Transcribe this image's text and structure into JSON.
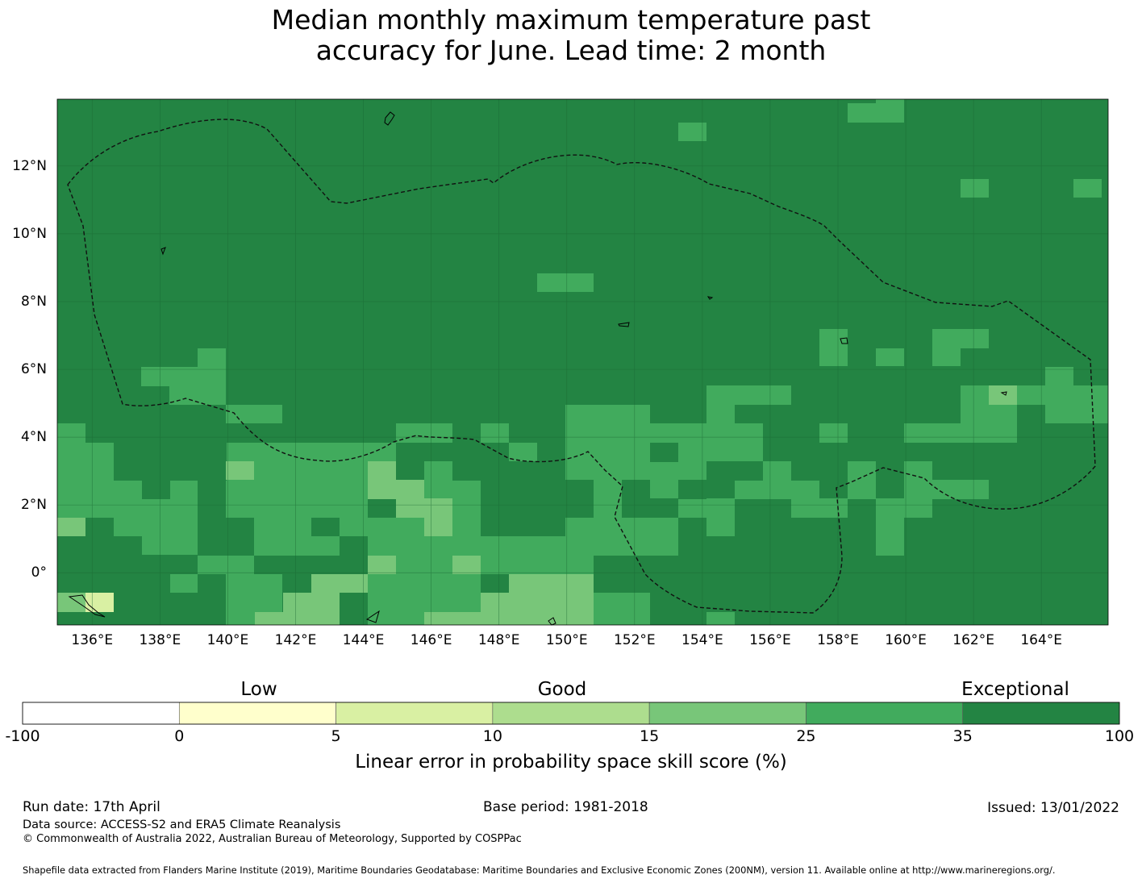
{
  "title": {
    "line1": "Median monthly maximum temperature past",
    "line2": "accuracy for June. Lead time: 2 month"
  },
  "map": {
    "lon_labels": [
      "136°E",
      "138°E",
      "140°E",
      "142°E",
      "144°E",
      "146°E",
      "148°E",
      "150°E",
      "152°E",
      "154°E",
      "156°E",
      "158°E",
      "160°E",
      "162°E",
      "164°E"
    ],
    "lon_values": [
      136,
      138,
      140,
      142,
      144,
      146,
      148,
      150,
      152,
      154,
      156,
      158,
      160,
      162,
      164
    ],
    "lat_labels": [
      "12°N",
      "10°N",
      "8°N",
      "6°N",
      "4°N",
      "2°N",
      "0°"
    ],
    "lat_values": [
      12,
      10,
      8,
      6,
      4,
      2,
      0
    ],
    "extent": {
      "lon_min": 134.97,
      "lon_max": 165.97,
      "lat_min": -1.54,
      "lat_max": 13.97
    },
    "grid_step_deg": 0.833
  },
  "colorbar": {
    "categories": [
      "Low",
      "Good",
      "Exceptional"
    ],
    "ticks": [
      "-100",
      "0",
      "5",
      "10",
      "15",
      "25",
      "35",
      "100"
    ],
    "bins": [
      {
        "from": -100,
        "to": 0,
        "color": "#ffffff"
      },
      {
        "from": 0,
        "to": 5,
        "color": "#ffffcc"
      },
      {
        "from": 5,
        "to": 10,
        "color": "#d9f0a3"
      },
      {
        "from": 10,
        "to": 15,
        "color": "#addd8e"
      },
      {
        "from": 15,
        "to": 25,
        "color": "#78c679"
      },
      {
        "from": 25,
        "to": 35,
        "color": "#41ab5d"
      },
      {
        "from": 35,
        "to": 100,
        "color": "#238443"
      }
    ],
    "label": "Linear error in probability space skill score (%)"
  },
  "footer": {
    "run_date": "Run date: 17th April",
    "base_period": "Base period: 1981-2018",
    "issued": "Issued: 13/01/2022",
    "data_source": "Data source: ACCESS-S2 and ERA5 Climate Reanalysis",
    "copyright": "© Commonwealth of Australia 2022, Australian Bureau of Meteorology, Supported by COSPPac",
    "shapefile": "Shapefile data extracted from Flanders Marine Institute (2019), Maritime Boundaries Geodatabase: Maritime Boundaries and Exclusive Economic Zones (200NM), version 11. Available online at http://www.marineregions.org/."
  }
}
